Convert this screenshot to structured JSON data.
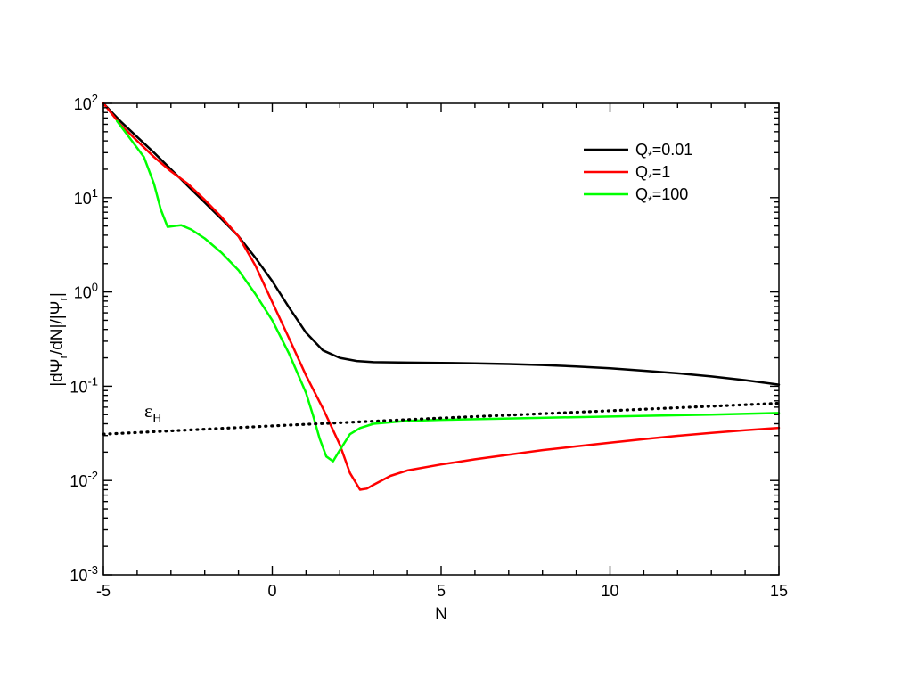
{
  "chart_data": {
    "type": "line",
    "xlabel": "N",
    "ylabel": "|dΨ_r/dN|/|Ψ_r|",
    "xlim": [
      -5,
      15
    ],
    "ylim": [
      0.001,
      100
    ],
    "yscale": "log",
    "grid": false,
    "legend_position": "top-right",
    "x_ticks": [
      "-5",
      "0",
      "5",
      "10",
      "15"
    ],
    "y_ticks": [
      {
        "value": 100,
        "base": "10",
        "exp": "2"
      },
      {
        "value": 10,
        "base": "10",
        "exp": "1"
      },
      {
        "value": 1,
        "base": "10",
        "exp": "0"
      },
      {
        "value": 0.1,
        "base": "10",
        "exp": "-1"
      },
      {
        "value": 0.01,
        "base": "10",
        "exp": "-2"
      },
      {
        "value": 0.001,
        "base": "10",
        "exp": "-3"
      }
    ],
    "series": [
      {
        "name": "Q*=0.01",
        "label_base": "Q",
        "label_sub": "*",
        "label_rest": "=0.01",
        "color": "#000000",
        "style": "solid",
        "x": [
          -5,
          -4.5,
          -4,
          -3.5,
          -3,
          -2.5,
          -2,
          -1.5,
          -1,
          -0.5,
          0,
          0.5,
          1,
          1.5,
          2,
          2.5,
          3,
          4,
          5,
          6,
          7,
          8,
          9,
          10,
          11,
          12,
          13,
          14,
          15
        ],
        "y": [
          100,
          65,
          44,
          30,
          20,
          13.3,
          8.9,
          5.9,
          3.9,
          2.3,
          1.3,
          0.68,
          0.37,
          0.24,
          0.2,
          0.185,
          0.18,
          0.178,
          0.177,
          0.175,
          0.172,
          0.168,
          0.162,
          0.155,
          0.146,
          0.137,
          0.127,
          0.116,
          0.104
        ]
      },
      {
        "name": "Q*=1",
        "label_base": "Q",
        "label_sub": "*",
        "label_rest": "=1",
        "color": "#ff0000",
        "style": "solid",
        "x": [
          -5,
          -4.5,
          -4,
          -3.5,
          -3,
          -2.5,
          -2,
          -1.5,
          -1,
          -0.5,
          0,
          0.5,
          1,
          1.5,
          2,
          2.3,
          2.6,
          2.8,
          3,
          3.5,
          4,
          5,
          6,
          7,
          8,
          9,
          10,
          11,
          12,
          13,
          14,
          15
        ],
        "y": [
          100,
          60,
          40,
          27,
          19,
          14,
          9.5,
          6.2,
          3.9,
          1.9,
          0.78,
          0.32,
          0.13,
          0.058,
          0.024,
          0.012,
          0.008,
          0.0082,
          0.009,
          0.0112,
          0.0128,
          0.0148,
          0.0168,
          0.0188,
          0.021,
          0.023,
          0.0252,
          0.0275,
          0.0298,
          0.032,
          0.0342,
          0.0362
        ]
      },
      {
        "name": "Q*=100",
        "label_base": "Q",
        "label_sub": "*",
        "label_rest": "=100",
        "color": "#00ff00",
        "style": "solid",
        "x": [
          -4.6,
          -4.2,
          -3.8,
          -3.5,
          -3.3,
          -3.1,
          -2.9,
          -2.7,
          -2.4,
          -2,
          -1.5,
          -1,
          -0.5,
          0,
          0.5,
          1,
          1.2,
          1.4,
          1.6,
          1.8,
          2,
          2.3,
          2.6,
          3,
          4,
          5,
          7,
          9,
          11,
          13,
          15
        ],
        "y": [
          65,
          42,
          27,
          14,
          7.5,
          4.9,
          5.0,
          5.1,
          4.6,
          3.7,
          2.6,
          1.7,
          0.95,
          0.5,
          0.22,
          0.085,
          0.05,
          0.028,
          0.018,
          0.016,
          0.021,
          0.031,
          0.036,
          0.04,
          0.043,
          0.044,
          0.0455,
          0.047,
          0.0485,
          0.05,
          0.052
        ]
      },
      {
        "name": "ε_H",
        "label_base": "ε",
        "label_sub": "H",
        "label_rest": "",
        "color": "#000000",
        "style": "dotted",
        "x": [
          -5,
          0,
          5,
          10,
          15
        ],
        "y": [
          0.031,
          0.038,
          0.046,
          0.055,
          0.066
        ]
      }
    ]
  }
}
